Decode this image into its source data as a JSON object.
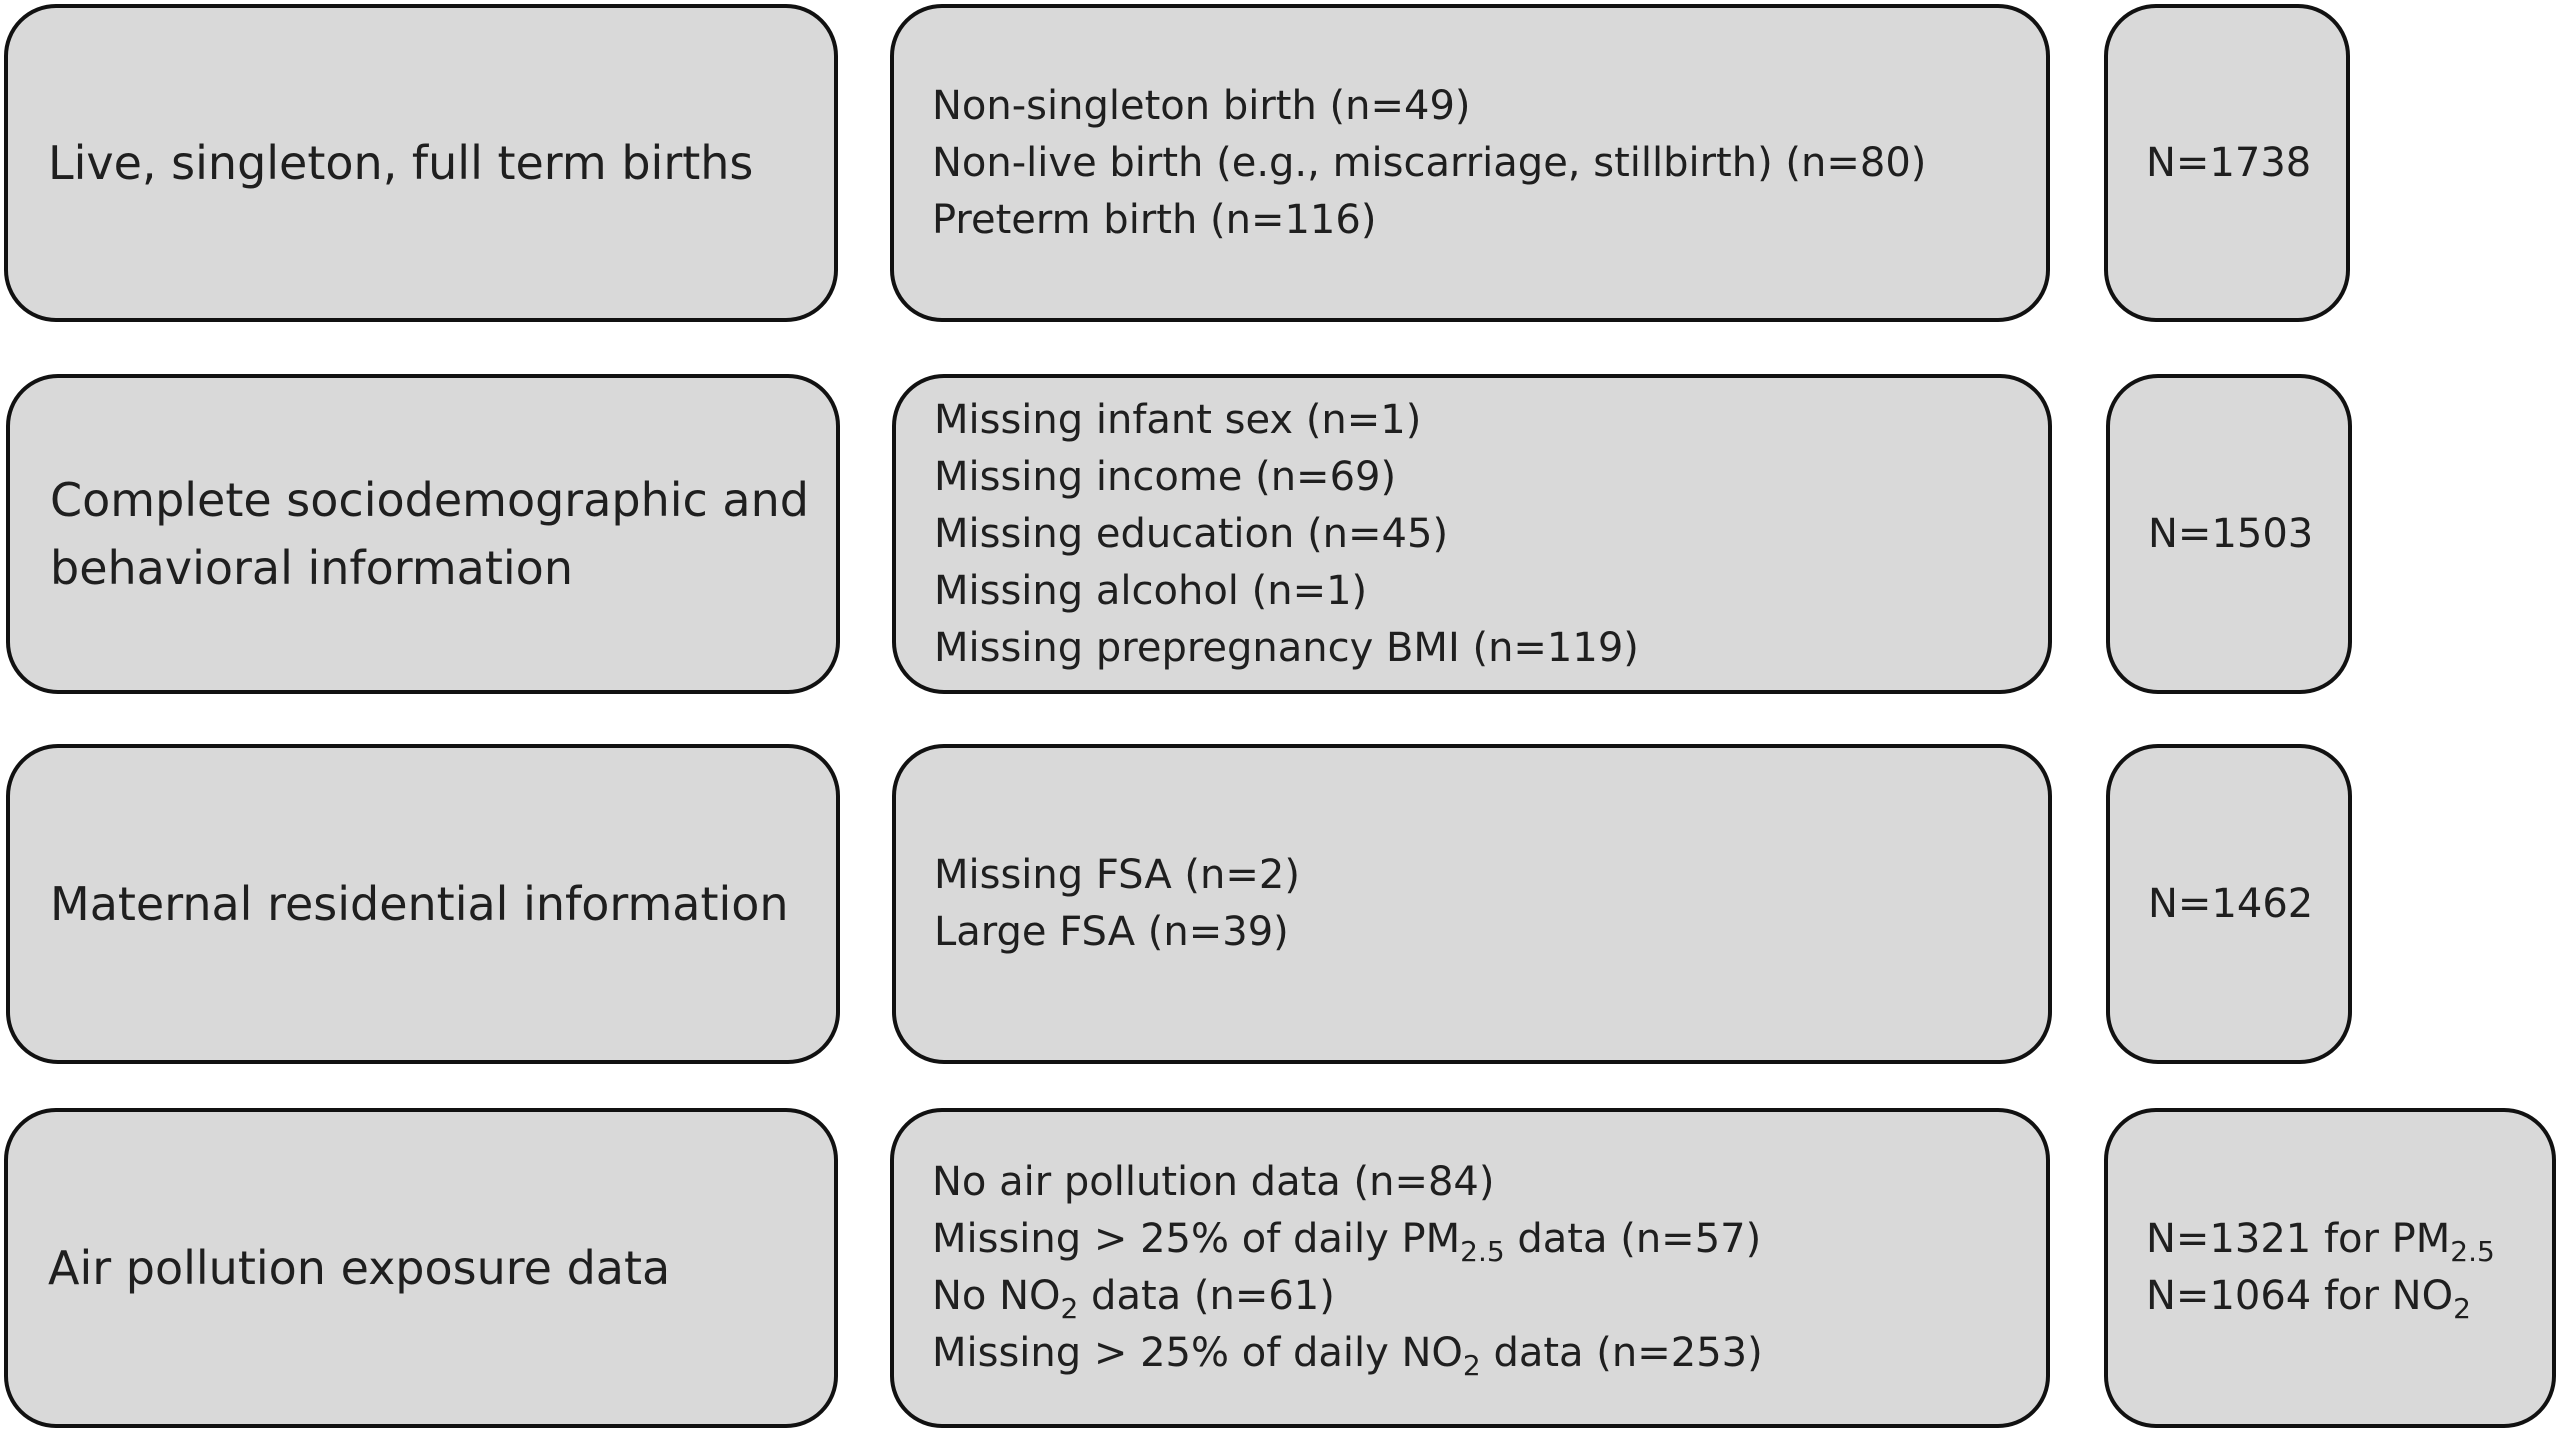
{
  "rows": [
    {
      "criterion": "Live, singleton, full term births",
      "exclusions": [
        "Non-singleton birth (n=49)",
        "Non-live birth (e.g., miscarriage, stillbirth) (n=80)",
        "Preterm birth (n=116)"
      ],
      "count": "N=1738"
    },
    {
      "criterion": "Complete sociodemographic and behavioral information",
      "exclusions": [
        "Missing infant sex (n=1)",
        "Missing income (n=69)",
        "Missing education (n=45)",
        "Missing alcohol (n=1)",
        "Missing prepregnancy BMI (n=119)"
      ],
      "count": "N=1503"
    },
    {
      "criterion": "Maternal residential information",
      "exclusions": [
        "Missing FSA (n=2)",
        "Large FSA (n=39)"
      ],
      "count": "N=1462"
    },
    {
      "criterion": "Air pollution exposure data",
      "exclusions": {
        "no_air_pollution": "No air pollution data (n=84)",
        "missing_pm25_pre": "Missing > 25% of daily PM",
        "missing_pm25_sub": "2.5",
        "missing_pm25_post": " data (n=57)",
        "no_no2_pre": "No NO",
        "no_no2_sub": "2",
        "no_no2_post": " data (n=61)",
        "missing_no2_pre": "Missing > 25% of daily NO",
        "missing_no2_sub": "2",
        "missing_no2_post": " data (n=253)"
      },
      "count": {
        "pm25_pre": "N=1321 for PM",
        "pm25_sub": "2.5",
        "no2_pre": "N=1064 for NO",
        "no2_sub": "2"
      }
    }
  ]
}
